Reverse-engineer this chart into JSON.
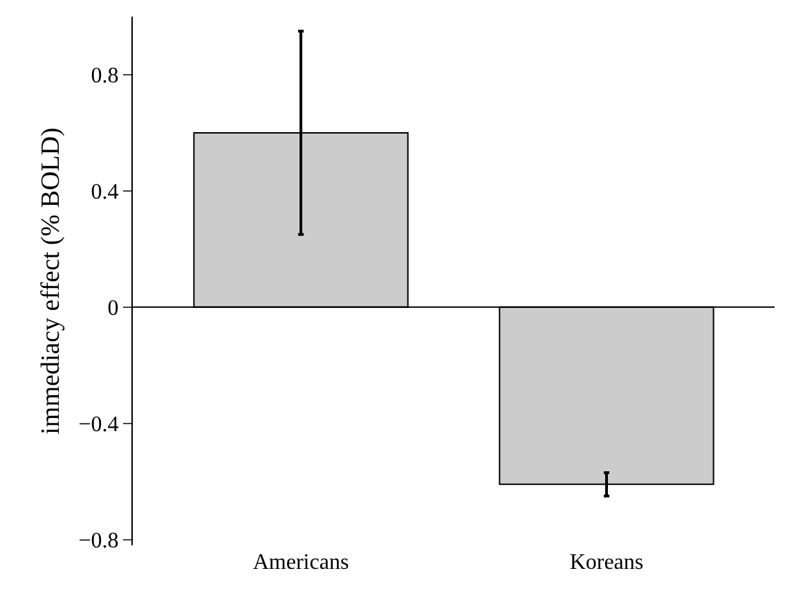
{
  "chart_data": {
    "type": "bar",
    "ylabel": "immediacy effect (% BOLD)",
    "categories": [
      "Americans",
      "Koreans"
    ],
    "values": [
      0.6,
      -0.61
    ],
    "errors": [
      0.35,
      0.04
    ],
    "color": "#cccccc",
    "ylim": [
      -0.82,
      1.0
    ],
    "yticks": [
      {
        "value": -0.8,
        "label": "−0.8"
      },
      {
        "value": -0.4,
        "label": "−0.4"
      },
      0,
      0.4,
      0.8
    ],
    "legend": false
  }
}
